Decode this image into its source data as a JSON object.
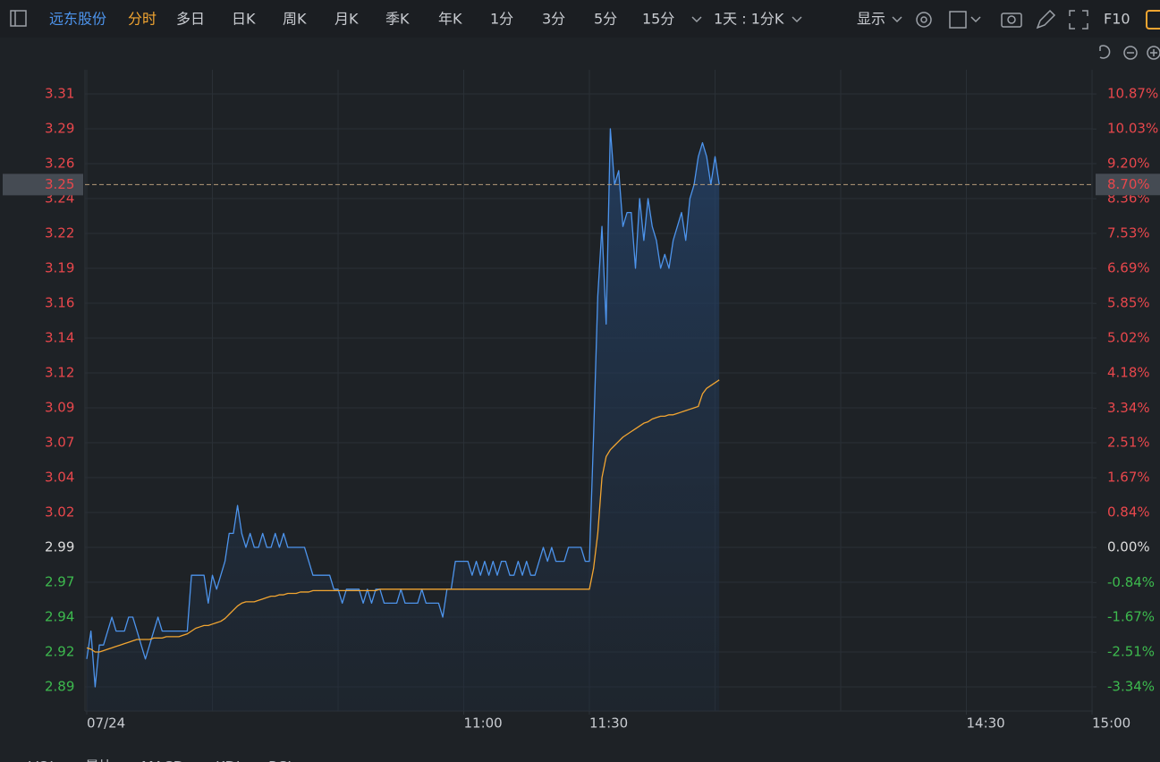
{
  "toolbar": {
    "stock": "远东股份",
    "tabs": [
      "分时",
      "多日",
      "日K",
      "周K",
      "月K",
      "季K",
      "年K",
      "1分",
      "3分",
      "5分",
      "15分"
    ],
    "period": "1天 : 1分K",
    "display": "显示",
    "f10": "F10"
  },
  "indicator_tabs": [
    "VOL",
    "量比",
    "MACD",
    "KDJ",
    "RSI"
  ],
  "chart_data": {
    "type": "line",
    "x": [
      0,
      1,
      2,
      3,
      4,
      5,
      6,
      7,
      8,
      9,
      10,
      11,
      12,
      13,
      14,
      15,
      16,
      17,
      18,
      19,
      20,
      21,
      22,
      23,
      24,
      25,
      26,
      27,
      28,
      29,
      30,
      31,
      32,
      33,
      34,
      35,
      36,
      37,
      38,
      39,
      40,
      41,
      42,
      43,
      44,
      45,
      46,
      47,
      48,
      49,
      50,
      51,
      52,
      53,
      54,
      55,
      56,
      57,
      58,
      59,
      60,
      61,
      62,
      63,
      64,
      65,
      66,
      67,
      68,
      69,
      70,
      71,
      72,
      73,
      74,
      75,
      76,
      77,
      78,
      79,
      80,
      81,
      82,
      83,
      84,
      85,
      86,
      87,
      88,
      89,
      90,
      91,
      92,
      93,
      94,
      95,
      96,
      97,
      98,
      99,
      100,
      101,
      102,
      103,
      104,
      105,
      106,
      107,
      108,
      109,
      110,
      111,
      112,
      113,
      114,
      115,
      116,
      117,
      118,
      119,
      120,
      121,
      122,
      123,
      124,
      125,
      126,
      127,
      128,
      129,
      130,
      131,
      132,
      133,
      134,
      135,
      136,
      137,
      138,
      139,
      140,
      141,
      142,
      143,
      144,
      145,
      146,
      147,
      148,
      149,
      150,
      151
    ],
    "xlim": [
      0,
      240
    ],
    "xticks": [
      {
        "value": 0,
        "label": "07/24"
      },
      {
        "value": 90,
        "label": "11:00"
      },
      {
        "value": 120,
        "label": "11:30"
      },
      {
        "value": 210,
        "label": "14:30"
      },
      {
        "value": 240,
        "label": "15:00"
      }
    ],
    "xgrid": [
      0,
      30,
      60,
      90,
      120,
      150,
      180,
      210,
      240
    ],
    "ylim": [
      2.8727,
      3.3323
    ],
    "yticks": [
      {
        "value": 3.315,
        "label": "3.31"
      },
      {
        "value": 3.29,
        "label": "3.29"
      },
      {
        "value": 3.265,
        "label": "3.26"
      },
      {
        "value": 3.24,
        "label": "3.24"
      },
      {
        "value": 3.215,
        "label": "3.22"
      },
      {
        "value": 3.19,
        "label": "3.19"
      },
      {
        "value": 3.165,
        "label": "3.16"
      },
      {
        "value": 3.14,
        "label": "3.14"
      },
      {
        "value": 3.115,
        "label": "3.12"
      },
      {
        "value": 3.09,
        "label": "3.09"
      },
      {
        "value": 3.065,
        "label": "3.07"
      },
      {
        "value": 3.04,
        "label": "3.04"
      },
      {
        "value": 3.015,
        "label": "3.02"
      },
      {
        "value": 2.99,
        "label": "2.99"
      },
      {
        "value": 2.965,
        "label": "2.97"
      },
      {
        "value": 2.94,
        "label": "2.94"
      },
      {
        "value": 2.915,
        "label": "2.92"
      },
      {
        "value": 2.89,
        "label": "2.89"
      }
    ],
    "y2lim": [
      -3.92,
      11.45
    ],
    "y2ticks": [
      {
        "value": 10.87,
        "label": "10.87%"
      },
      {
        "value": 10.03,
        "label": "10.03%"
      },
      {
        "value": 9.2,
        "label": "9.20%"
      },
      {
        "value": 8.36,
        "label": "8.36%"
      },
      {
        "value": 7.53,
        "label": "7.53%"
      },
      {
        "value": 6.69,
        "label": "6.69%"
      },
      {
        "value": 5.85,
        "label": "5.85%"
      },
      {
        "value": 5.02,
        "label": "5.02%"
      },
      {
        "value": 4.18,
        "label": "4.18%"
      },
      {
        "value": 3.34,
        "label": "3.34%"
      },
      {
        "value": 2.51,
        "label": "2.51%"
      },
      {
        "value": 1.67,
        "label": "1.67%"
      },
      {
        "value": 0.84,
        "label": "0.84%"
      },
      {
        "value": 0,
        "label": "0.00%"
      },
      {
        "value": -0.84,
        "label": "-0.84%"
      },
      {
        "value": -1.67,
        "label": "-1.67%"
      },
      {
        "value": -2.51,
        "label": "-2.51%"
      },
      {
        "value": -3.34,
        "label": "-3.34%"
      }
    ],
    "grid": true,
    "up_color": "#e8474c",
    "down_color": "#3dba4e",
    "flat_color": "#dcdcdc",
    "last_price_label": {
      "value": 3.25,
      "label": "3.25"
    },
    "last_change_label": {
      "value": 8.7,
      "label": "8.70%"
    },
    "series": [
      {
        "color": "#4d94ec",
        "fill": true,
        "values": [
          2.91,
          2.93,
          2.89,
          2.92,
          2.92,
          2.93,
          2.94,
          2.93,
          2.93,
          2.93,
          2.94,
          2.94,
          2.93,
          2.92,
          2.91,
          2.92,
          2.93,
          2.94,
          2.93,
          2.93,
          2.93,
          2.93,
          2.93,
          2.93,
          2.93,
          2.97,
          2.97,
          2.97,
          2.97,
          2.95,
          2.97,
          2.96,
          2.97,
          2.98,
          3.0,
          3.0,
          3.02,
          3.0,
          2.99,
          3.0,
          2.99,
          2.99,
          3.0,
          2.99,
          2.99,
          3.0,
          2.99,
          3.0,
          2.99,
          2.99,
          2.99,
          2.99,
          2.99,
          2.98,
          2.97,
          2.97,
          2.97,
          2.97,
          2.97,
          2.96,
          2.96,
          2.95,
          2.96,
          2.96,
          2.96,
          2.96,
          2.95,
          2.96,
          2.95,
          2.96,
          2.96,
          2.95,
          2.95,
          2.95,
          2.95,
          2.96,
          2.95,
          2.95,
          2.95,
          2.95,
          2.96,
          2.95,
          2.95,
          2.95,
          2.95,
          2.94,
          2.96,
          2.96,
          2.98,
          2.98,
          2.98,
          2.98,
          2.97,
          2.98,
          2.97,
          2.98,
          2.97,
          2.98,
          2.97,
          2.98,
          2.98,
          2.97,
          2.97,
          2.98,
          2.97,
          2.98,
          2.97,
          2.97,
          2.98,
          2.99,
          2.98,
          2.99,
          2.98,
          2.98,
          2.98,
          2.99,
          2.99,
          2.99,
          2.99,
          2.98,
          2.98,
          3.07,
          3.17,
          3.22,
          3.15,
          3.29,
          3.25,
          3.26,
          3.22,
          3.23,
          3.23,
          3.19,
          3.24,
          3.21,
          3.24,
          3.22,
          3.21,
          3.19,
          3.2,
          3.19,
          3.21,
          3.22,
          3.23,
          3.21,
          3.24,
          3.25,
          3.27,
          3.28,
          3.27,
          3.25,
          3.27,
          3.25
        ]
      },
      {
        "color": "#f2a531",
        "fill": false,
        "values": [
          2.918,
          2.917,
          2.915,
          2.915,
          2.916,
          2.917,
          2.918,
          2.919,
          2.92,
          2.921,
          2.922,
          2.923,
          2.924,
          2.924,
          2.924,
          2.924,
          2.925,
          2.925,
          2.925,
          2.926,
          2.926,
          2.926,
          2.926,
          2.927,
          2.928,
          2.93,
          2.932,
          2.933,
          2.934,
          2.934,
          2.935,
          2.936,
          2.937,
          2.939,
          2.942,
          2.945,
          2.948,
          2.95,
          2.951,
          2.951,
          2.951,
          2.952,
          2.953,
          2.954,
          2.955,
          2.955,
          2.956,
          2.956,
          2.957,
          2.957,
          2.957,
          2.958,
          2.958,
          2.958,
          2.959,
          2.959,
          2.959,
          2.959,
          2.959,
          2.959,
          2.959,
          2.959,
          2.959,
          2.959,
          2.959,
          2.959,
          2.959,
          2.959,
          2.959,
          2.959,
          2.96,
          2.96,
          2.96,
          2.96,
          2.96,
          2.96,
          2.96,
          2.96,
          2.96,
          2.96,
          2.96,
          2.96,
          2.96,
          2.96,
          2.96,
          2.96,
          2.96,
          2.96,
          2.96,
          2.96,
          2.96,
          2.96,
          2.96,
          2.96,
          2.96,
          2.96,
          2.96,
          2.96,
          2.96,
          2.96,
          2.96,
          2.96,
          2.96,
          2.96,
          2.96,
          2.96,
          2.96,
          2.96,
          2.96,
          2.96,
          2.96,
          2.96,
          2.96,
          2.96,
          2.96,
          2.96,
          2.96,
          2.96,
          2.96,
          2.96,
          2.96,
          2.975,
          3.0,
          3.04,
          3.055,
          3.06,
          3.063,
          3.066,
          3.069,
          3.071,
          3.073,
          3.075,
          3.077,
          3.079,
          3.08,
          3.082,
          3.083,
          3.084,
          3.084,
          3.085,
          3.085,
          3.086,
          3.087,
          3.088,
          3.089,
          3.09,
          3.091,
          3.1,
          3.104,
          3.106,
          3.108,
          3.11
        ]
      }
    ]
  }
}
